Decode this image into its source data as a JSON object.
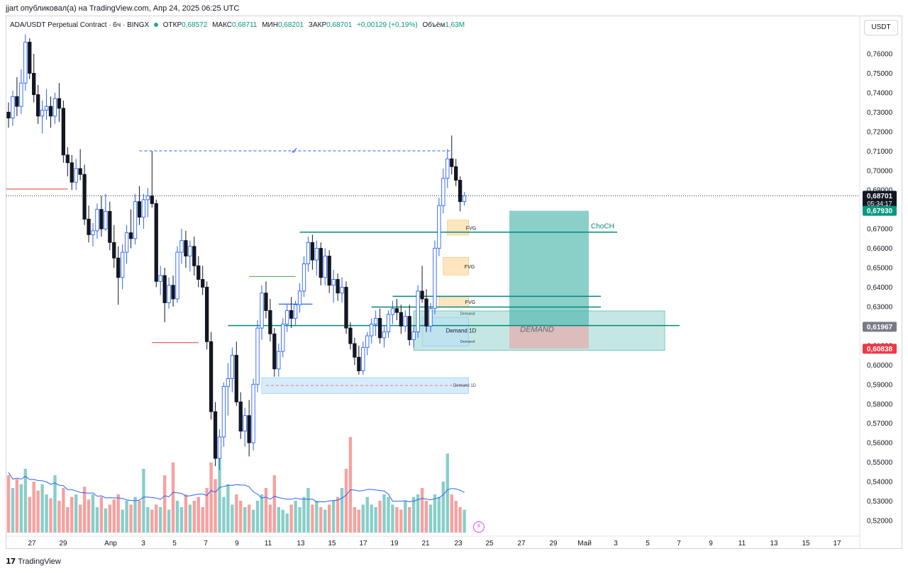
{
  "publisher_line": "jjart опубликовал(а) на TradingView.com, Апр 24, 2025 06:25 UTC",
  "legend": {
    "symbol": "ADA/USDT Perpetual Contract · 6ч · BINGX",
    "open_label": "ОТКР",
    "open": "0,68572",
    "high_label": "МАКС",
    "high": "0,68711",
    "low_label": "МИН",
    "low": "0,68201",
    "close_label": "ЗАКР",
    "close": "0,68701",
    "change": "+0,00129 (+0,19%)",
    "volume_label": "Объём",
    "volume": "1,63M"
  },
  "currency_button": "USDT",
  "brand": "TradingView",
  "colors": {
    "up": "#2962ff",
    "down": "#131722",
    "vol_up": "#26a69a",
    "vol_down": "#ef5350",
    "accent_green": "#089981",
    "demand_fill": "#b2dfdb",
    "fvg_fill": "#ffe0b2",
    "box_blue": "#bbdefb"
  },
  "chart_data": {
    "type": "candlestick",
    "timeframe": "6ч",
    "y_axis": {
      "ylim": [
        0.512,
        0.772
      ],
      "ticks": [
        "0,76000",
        "0,75000",
        "0,74000",
        "0,73000",
        "0,72000",
        "0,71000",
        "0,70000",
        "0,69000",
        "0,68000",
        "0,67000",
        "0,66000",
        "0,65000",
        "0,64000",
        "0,63000",
        "0,62000",
        "0,61000",
        "0,60000",
        "0,59000",
        "0,58000",
        "0,57000",
        "0,56000",
        "0,55000",
        "0,54000",
        "0,53000",
        "0,52000"
      ]
    },
    "x_axis": {
      "tick_labels": [
        "27",
        "29",
        "Апр",
        "3",
        "5",
        "7",
        "9",
        "11",
        "13",
        "15",
        "17",
        "19",
        "21",
        "23",
        "25",
        "27",
        "29",
        "Май",
        "3",
        "5",
        "7",
        "9",
        "11",
        "13",
        "15",
        "17"
      ]
    },
    "price_labels": [
      {
        "text": "0,68701",
        "sub": "05:34:17",
        "value": 0.68701,
        "style": "dark"
      },
      {
        "text": "0,67930",
        "value": 0.6793,
        "style": "green"
      },
      {
        "text": "0,61967",
        "value": 0.61967,
        "style": "grey"
      },
      {
        "text": "0,60838",
        "value": 0.60838,
        "style": "red"
      }
    ],
    "annotations": [
      {
        "text": "FVG",
        "type": "fvg"
      },
      {
        "text": "FVG",
        "type": "fvg"
      },
      {
        "text": "FVG",
        "type": "fvg"
      },
      {
        "text": "Demand",
        "type": "demand-small"
      },
      {
        "text": "Demand 1D",
        "type": "demand"
      },
      {
        "text": "Demand",
        "type": "demand-small"
      },
      {
        "text": "Demand 1D",
        "type": "demand-low"
      },
      {
        "text": "DEMAND",
        "type": "demand-big"
      },
      {
        "text": "ChoCH",
        "type": "choch"
      }
    ],
    "levels": {
      "prev_high": 0.7101,
      "choch": 0.6683,
      "fvg_line1": 0.6353,
      "fvg_line2": 0.6298,
      "demand_line": 0.6203,
      "red_left_high": 0.6905,
      "red_left_low": 0.6115,
      "position_entry": 0.6203,
      "position_target": 0.6793,
      "position_stop": 0.6084
    },
    "candles": [
      [
        0.73,
        0.735,
        0.722,
        0.727
      ],
      [
        0.727,
        0.741,
        0.723,
        0.738
      ],
      [
        0.738,
        0.748,
        0.728,
        0.733
      ],
      [
        0.733,
        0.752,
        0.729,
        0.745
      ],
      [
        0.745,
        0.77,
        0.741,
        0.766
      ],
      [
        0.766,
        0.768,
        0.747,
        0.75
      ],
      [
        0.75,
        0.76,
        0.735,
        0.739
      ],
      [
        0.739,
        0.744,
        0.724,
        0.728
      ],
      [
        0.728,
        0.736,
        0.719,
        0.731
      ],
      [
        0.731,
        0.742,
        0.726,
        0.733
      ],
      [
        0.733,
        0.738,
        0.722,
        0.728
      ],
      [
        0.728,
        0.74,
        0.724,
        0.737
      ],
      [
        0.737,
        0.745,
        0.725,
        0.732
      ],
      [
        0.732,
        0.736,
        0.704,
        0.708
      ],
      [
        0.708,
        0.712,
        0.697,
        0.704
      ],
      [
        0.704,
        0.708,
        0.69,
        0.694
      ],
      [
        0.694,
        0.706,
        0.69,
        0.701
      ],
      [
        0.701,
        0.711,
        0.695,
        0.698
      ],
      [
        0.698,
        0.703,
        0.672,
        0.675
      ],
      [
        0.675,
        0.682,
        0.663,
        0.667
      ],
      [
        0.667,
        0.673,
        0.661,
        0.669
      ],
      [
        0.669,
        0.683,
        0.665,
        0.68
      ],
      [
        0.68,
        0.687,
        0.666,
        0.67
      ],
      [
        0.67,
        0.688,
        0.669,
        0.679
      ],
      [
        0.679,
        0.684,
        0.659,
        0.663
      ],
      [
        0.663,
        0.672,
        0.65,
        0.655
      ],
      [
        0.655,
        0.661,
        0.631,
        0.645
      ],
      [
        0.645,
        0.662,
        0.639,
        0.658
      ],
      [
        0.658,
        0.672,
        0.652,
        0.668
      ],
      [
        0.668,
        0.68,
        0.66,
        0.665
      ],
      [
        0.665,
        0.688,
        0.662,
        0.684
      ],
      [
        0.684,
        0.692,
        0.672,
        0.676
      ],
      [
        0.676,
        0.688,
        0.67,
        0.685
      ],
      [
        0.685,
        0.691,
        0.676,
        0.687
      ],
      [
        0.687,
        0.71,
        0.681,
        0.683
      ],
      [
        0.683,
        0.685,
        0.64,
        0.643
      ],
      [
        0.643,
        0.651,
        0.636,
        0.646
      ],
      [
        0.646,
        0.65,
        0.622,
        0.632
      ],
      [
        0.632,
        0.645,
        0.629,
        0.641
      ],
      [
        0.641,
        0.646,
        0.63,
        0.634
      ],
      [
        0.634,
        0.661,
        0.632,
        0.658
      ],
      [
        0.658,
        0.67,
        0.652,
        0.664
      ],
      [
        0.664,
        0.669,
        0.65,
        0.656
      ],
      [
        0.656,
        0.664,
        0.648,
        0.661
      ],
      [
        0.661,
        0.666,
        0.646,
        0.651
      ],
      [
        0.651,
        0.656,
        0.64,
        0.644
      ],
      [
        0.644,
        0.651,
        0.636,
        0.64
      ],
      [
        0.64,
        0.643,
        0.608,
        0.612
      ],
      [
        0.612,
        0.617,
        0.572,
        0.576
      ],
      [
        0.576,
        0.581,
        0.548,
        0.552
      ],
      [
        0.552,
        0.567,
        0.546,
        0.563
      ],
      [
        0.563,
        0.591,
        0.558,
        0.589
      ],
      [
        0.589,
        0.601,
        0.574,
        0.593
      ],
      [
        0.593,
        0.609,
        0.586,
        0.605
      ],
      [
        0.605,
        0.612,
        0.579,
        0.581
      ],
      [
        0.581,
        0.586,
        0.562,
        0.566
      ],
      [
        0.566,
        0.578,
        0.558,
        0.574
      ],
      [
        0.574,
        0.582,
        0.553,
        0.56
      ],
      [
        0.56,
        0.593,
        0.556,
        0.59
      ],
      [
        0.59,
        0.623,
        0.586,
        0.619
      ],
      [
        0.619,
        0.641,
        0.613,
        0.637
      ],
      [
        0.637,
        0.643,
        0.624,
        0.628
      ],
      [
        0.628,
        0.634,
        0.612,
        0.616
      ],
      [
        0.616,
        0.619,
        0.594,
        0.598
      ],
      [
        0.598,
        0.611,
        0.594,
        0.607
      ],
      [
        0.607,
        0.624,
        0.604,
        0.621
      ],
      [
        0.621,
        0.631,
        0.617,
        0.628
      ],
      [
        0.628,
        0.635,
        0.619,
        0.624
      ],
      [
        0.624,
        0.633,
        0.62,
        0.631
      ],
      [
        0.631,
        0.642,
        0.627,
        0.638
      ],
      [
        0.638,
        0.656,
        0.635,
        0.652
      ],
      [
        0.652,
        0.666,
        0.648,
        0.663
      ],
      [
        0.663,
        0.667,
        0.649,
        0.654
      ],
      [
        0.654,
        0.664,
        0.646,
        0.66
      ],
      [
        0.66,
        0.663,
        0.641,
        0.645
      ],
      [
        0.645,
        0.66,
        0.641,
        0.656
      ],
      [
        0.656,
        0.659,
        0.637,
        0.641
      ],
      [
        0.641,
        0.649,
        0.632,
        0.644
      ],
      [
        0.644,
        0.647,
        0.633,
        0.637
      ],
      [
        0.637,
        0.645,
        0.632,
        0.64
      ],
      [
        0.64,
        0.643,
        0.616,
        0.619
      ],
      [
        0.619,
        0.622,
        0.608,
        0.611
      ],
      [
        0.611,
        0.614,
        0.6,
        0.604
      ],
      [
        0.604,
        0.61,
        0.595,
        0.597
      ],
      [
        0.597,
        0.612,
        0.595,
        0.609
      ],
      [
        0.609,
        0.617,
        0.605,
        0.615
      ],
      [
        0.615,
        0.624,
        0.611,
        0.621
      ],
      [
        0.621,
        0.628,
        0.615,
        0.624
      ],
      [
        0.624,
        0.629,
        0.611,
        0.614
      ],
      [
        0.614,
        0.62,
        0.609,
        0.617
      ],
      [
        0.617,
        0.628,
        0.614,
        0.626
      ],
      [
        0.626,
        0.633,
        0.621,
        0.629
      ],
      [
        0.629,
        0.634,
        0.623,
        0.627
      ],
      [
        0.627,
        0.631,
        0.616,
        0.62
      ],
      [
        0.62,
        0.628,
        0.617,
        0.625
      ],
      [
        0.625,
        0.631,
        0.61,
        0.613
      ],
      [
        0.613,
        0.62,
        0.609,
        0.617
      ],
      [
        0.617,
        0.641,
        0.614,
        0.638
      ],
      [
        0.638,
        0.651,
        0.632,
        0.634
      ],
      [
        0.634,
        0.639,
        0.617,
        0.62
      ],
      [
        0.62,
        0.632,
        0.617,
        0.629
      ],
      [
        0.629,
        0.664,
        0.626,
        0.66
      ],
      [
        0.66,
        0.686,
        0.656,
        0.682
      ],
      [
        0.682,
        0.701,
        0.678,
        0.696
      ],
      [
        0.696,
        0.711,
        0.691,
        0.706
      ],
      [
        0.706,
        0.718,
        0.698,
        0.702
      ],
      [
        0.702,
        0.706,
        0.692,
        0.695
      ],
      [
        0.695,
        0.697,
        0.679,
        0.684
      ],
      [
        0.684,
        0.689,
        0.682,
        0.687
      ]
    ],
    "volume": {
      "ylim": [
        0,
        1
      ],
      "values": [
        0.45,
        0.35,
        0.42,
        0.38,
        0.5,
        0.28,
        0.4,
        0.33,
        0.38,
        0.3,
        0.27,
        0.45,
        0.25,
        0.35,
        0.2,
        0.28,
        0.3,
        0.22,
        0.36,
        0.26,
        0.3,
        0.2,
        0.28,
        0.19,
        0.22,
        0.26,
        0.3,
        0.18,
        0.25,
        0.22,
        0.28,
        0.25,
        0.5,
        0.2,
        0.18,
        0.22,
        0.2,
        0.45,
        0.18,
        0.55,
        0.25,
        0.2,
        0.3,
        0.22,
        0.25,
        0.28,
        0.2,
        0.35,
        0.55,
        0.42,
        0.6,
        0.28,
        0.38,
        0.22,
        0.3,
        0.25,
        0.2,
        0.22,
        0.18,
        0.25,
        0.3,
        0.35,
        0.22,
        0.45,
        0.2,
        0.18,
        0.15,
        0.22,
        0.25,
        0.2,
        0.28,
        0.35,
        0.22,
        0.25,
        0.2,
        0.18,
        0.22,
        0.25,
        0.28,
        0.35,
        0.5,
        0.75,
        0.2,
        0.18,
        0.22,
        0.28,
        0.22,
        0.2,
        0.25,
        0.3,
        0.28,
        0.22,
        0.2,
        0.18,
        0.25,
        0.2,
        0.28,
        0.3,
        0.35,
        0.25,
        0.22,
        0.3,
        0.28,
        0.4,
        0.62,
        0.3,
        0.25,
        0.2,
        0.18
      ]
    }
  }
}
